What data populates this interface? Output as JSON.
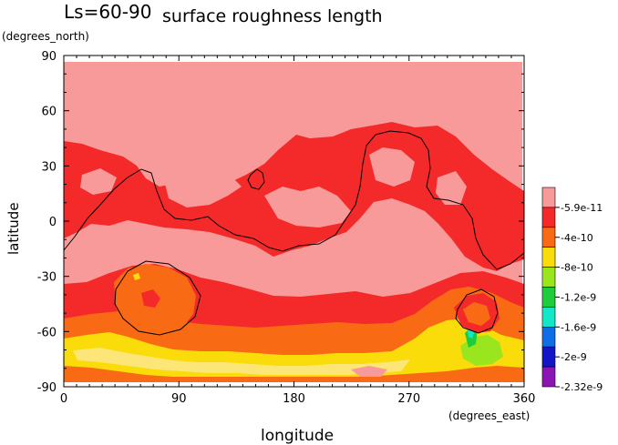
{
  "chart_data": {
    "type": "heatmap",
    "season_label": "Ls=60-90",
    "title": "surface roughness length",
    "xlabel": "longitude",
    "ylabel": "latitude",
    "x_unit": "(degrees_east)",
    "y_unit": "(degrees_north)",
    "xlim": [
      0,
      360
    ],
    "ylim": [
      -90,
      90
    ],
    "x_ticks": [
      0,
      90,
      180,
      270,
      360
    ],
    "y_ticks": [
      -90,
      -60,
      -30,
      0,
      30,
      60,
      90
    ],
    "colorbar": {
      "labels": [
        "-5.9e-11",
        "-4e-10",
        "-8e-10",
        "-1.2e-9",
        "-1.6e-9",
        "-2e-9",
        "-2.32e-9"
      ],
      "colors": [
        "#f99a9a",
        "#f42a2a",
        "#f96a14",
        "#fadc0a",
        "#9ae61e",
        "#1ecc3c",
        "#14e6c8",
        "#0f6ee6",
        "#1414c8",
        "#8c14b4"
      ]
    },
    "regions": [
      {
        "level": "-5.9e-11",
        "description": "near-zero roughness over northern high latitudes and mid-latitude plains"
      },
      {
        "level": "-4e-10",
        "description": "band across northern mid-latitudes and southern mid-latitudes"
      },
      {
        "level": "-8e-10",
        "description": "southern high latitudes south of -50"
      },
      {
        "level": "-1.2e-9",
        "description": "patches near -75 latitude"
      },
      {
        "level": "-1.6e-9",
        "description": "small area near 320E, -60"
      }
    ]
  }
}
